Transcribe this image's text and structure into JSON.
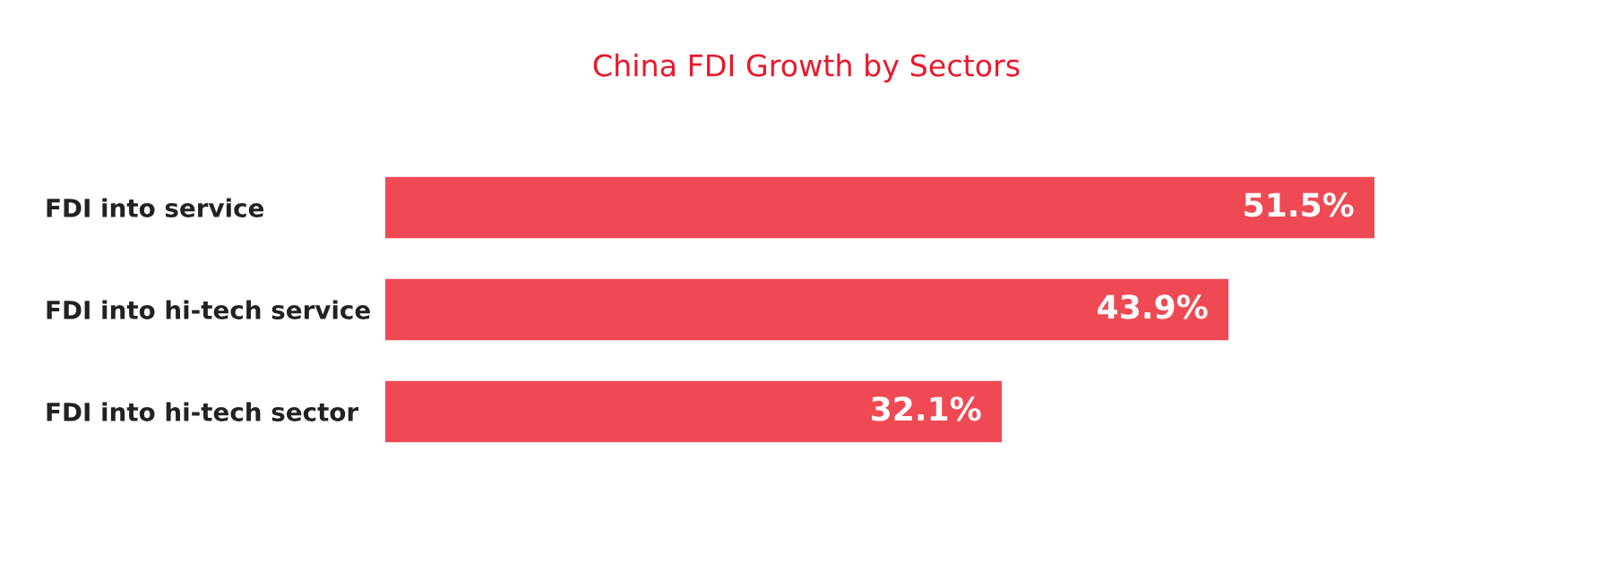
{
  "chart_data": {
    "type": "bar",
    "orientation": "horizontal",
    "title": "China FDI Growth by Sectors",
    "categories": [
      "FDI into service",
      "FDI into hi-tech service",
      "FDI into hi-tech sector"
    ],
    "values": [
      51.5,
      43.9,
      32.1
    ],
    "value_labels": [
      "51.5%",
      "43.9%",
      "32.1%"
    ],
    "color": "#ef4a54",
    "grid": false,
    "legend": false
  }
}
